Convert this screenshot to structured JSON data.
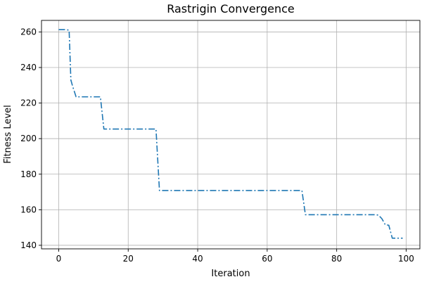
{
  "chart_data": {
    "type": "line",
    "title": "Rastrigin Convergence",
    "xlabel": "Iteration",
    "ylabel": "Fitness Level",
    "xlim": [
      -4.95,
      103.95
    ],
    "ylim": [
      138.0,
      266.5
    ],
    "xticks": [
      0,
      20,
      40,
      60,
      80,
      100
    ],
    "yticks": [
      140,
      160,
      180,
      200,
      220,
      240,
      260
    ],
    "grid": true,
    "line_style": "dashdot",
    "series": [
      {
        "color": "#1f77b4",
        "x": [
          0,
          1,
          2,
          3,
          3.5,
          4,
          5,
          6,
          7,
          8,
          9,
          10,
          11,
          12,
          13,
          14,
          15,
          16,
          17,
          18,
          19,
          20,
          21,
          22,
          23,
          24,
          25,
          26,
          27,
          28,
          29,
          30,
          31,
          32,
          33,
          34,
          35,
          36,
          37,
          38,
          39,
          40,
          41,
          42,
          43,
          44,
          45,
          46,
          47,
          48,
          49,
          50,
          51,
          52,
          53,
          54,
          55,
          56,
          57,
          58,
          59,
          60,
          61,
          62,
          63,
          64,
          65,
          66,
          67,
          68,
          69,
          70,
          71,
          72,
          73,
          74,
          75,
          76,
          77,
          78,
          79,
          80,
          81,
          82,
          83,
          84,
          85,
          86,
          87,
          88,
          89,
          90,
          91,
          92,
          93,
          94,
          95,
          96,
          97,
          98,
          99
        ],
        "y": [
          261.3,
          261.3,
          261.3,
          261.0,
          233.0,
          229.5,
          223.5,
          223.5,
          223.5,
          223.5,
          223.5,
          223.5,
          223.5,
          223.5,
          205.4,
          205.4,
          205.4,
          205.4,
          205.4,
          205.4,
          205.4,
          205.4,
          205.4,
          205.4,
          205.4,
          205.4,
          205.4,
          205.4,
          205.4,
          205.4,
          170.8,
          170.8,
          170.8,
          170.8,
          170.8,
          170.8,
          170.8,
          170.8,
          170.8,
          170.8,
          170.8,
          170.8,
          170.8,
          170.8,
          170.8,
          170.8,
          170.8,
          170.8,
          170.8,
          170.8,
          170.8,
          170.8,
          170.8,
          170.8,
          170.8,
          170.8,
          170.8,
          170.8,
          170.8,
          170.8,
          170.8,
          170.8,
          170.8,
          170.8,
          170.8,
          170.8,
          170.8,
          170.8,
          170.8,
          170.8,
          170.8,
          170.8,
          157.2,
          157.2,
          157.2,
          157.2,
          157.2,
          157.2,
          157.2,
          157.2,
          157.2,
          157.2,
          157.2,
          157.2,
          157.2,
          157.2,
          157.2,
          157.2,
          157.2,
          157.2,
          157.2,
          157.2,
          157.2,
          157.0,
          155.0,
          151.5,
          151.3,
          144.0,
          144.0,
          144.0,
          144.0
        ]
      }
    ]
  }
}
